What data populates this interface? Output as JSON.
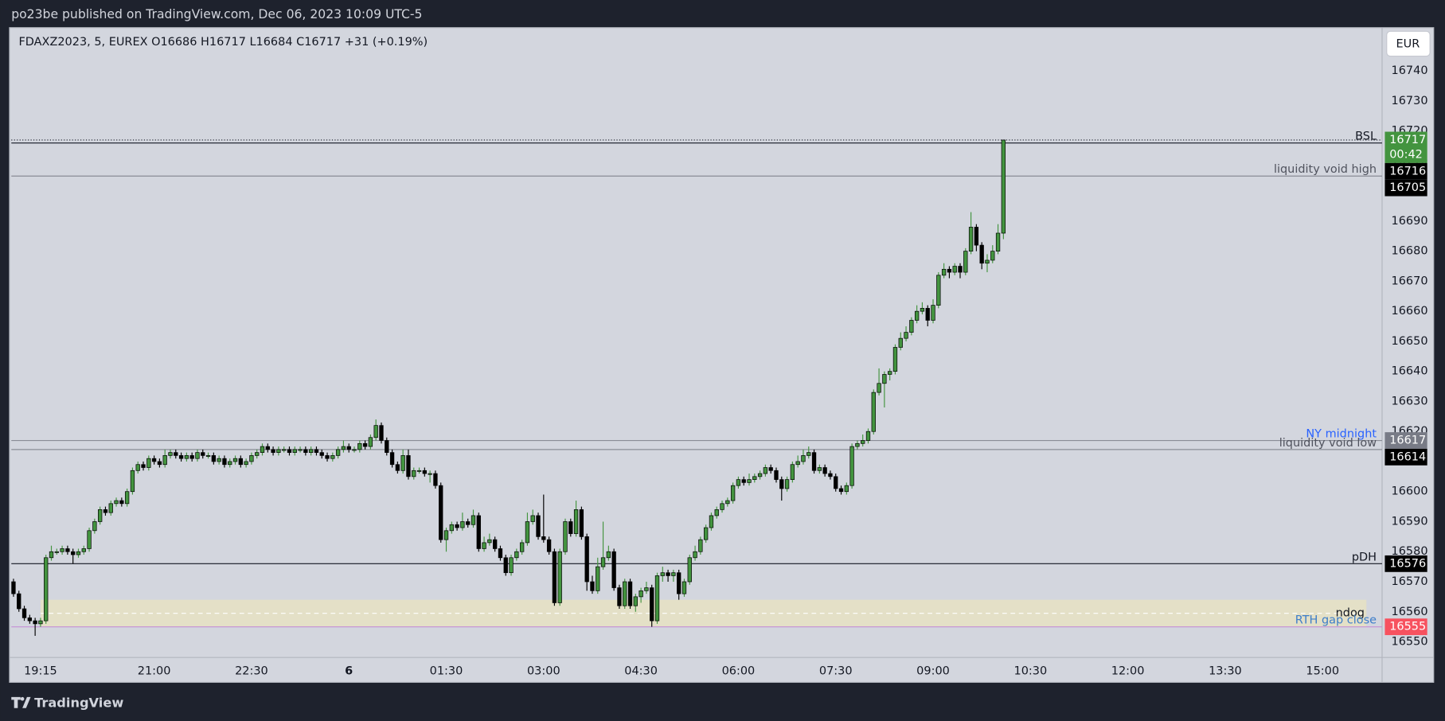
{
  "header": {
    "publisher": "po23be published on TradingView.com, Dec 06, 2023 10:09 UTC-5",
    "brand": "TradingView"
  },
  "chart_data": {
    "type": "candlestick",
    "legend": "FDAXZ2023, 5, EUREX  O16686  H16717  L16684  C16717  +31 (+0.19%)",
    "currency": "EUR",
    "countdown": "00:42",
    "up_color": "#43943f",
    "down_color": "#000000",
    "grid": false,
    "x": [
      "18:50",
      "18:55",
      "19:00",
      "19:05",
      "19:10",
      "19:15",
      "19:20",
      "19:25",
      "19:30",
      "19:35",
      "19:40",
      "19:45",
      "19:50",
      "19:55",
      "20:00",
      "20:05",
      "20:10",
      "20:15",
      "20:20",
      "20:25",
      "20:30",
      "20:35",
      "20:40",
      "20:45",
      "20:50",
      "20:55",
      "21:00",
      "21:05",
      "21:10",
      "21:15",
      "21:20",
      "21:25",
      "21:30",
      "21:35",
      "21:40",
      "21:45",
      "21:50",
      "21:55",
      "22:00",
      "22:05",
      "22:10",
      "22:15",
      "22:20",
      "22:25",
      "22:30",
      "22:35",
      "22:40",
      "22:45",
      "22:50",
      "22:55",
      "23:00",
      "23:05",
      "23:10",
      "23:15",
      "23:20",
      "23:25",
      "23:30",
      "23:35",
      "23:40",
      "23:45",
      "23:50",
      "23:55",
      "00:00",
      "00:05",
      "00:10",
      "00:15",
      "00:20",
      "00:25",
      "00:30",
      "00:35",
      "00:40",
      "00:45",
      "00:50",
      "00:55",
      "01:00",
      "01:05",
      "01:10",
      "01:15",
      "01:20",
      "01:25",
      "01:30",
      "01:35",
      "01:40",
      "01:45",
      "01:50",
      "01:55",
      "02:00",
      "02:05",
      "02:10",
      "02:15",
      "02:20",
      "02:25",
      "02:30",
      "02:35",
      "02:40",
      "02:45",
      "02:50",
      "02:55",
      "03:00",
      "03:05",
      "03:10",
      "03:15",
      "03:20",
      "03:25",
      "03:30",
      "03:35",
      "03:40",
      "03:45",
      "03:50",
      "03:55",
      "04:00",
      "04:05",
      "04:10",
      "04:15",
      "04:20",
      "04:25",
      "04:30",
      "04:35",
      "04:40",
      "04:45",
      "04:50",
      "04:55",
      "05:00",
      "05:05",
      "05:10",
      "05:15",
      "05:20",
      "05:25",
      "05:30",
      "05:35",
      "05:40",
      "05:45",
      "05:50",
      "05:55",
      "06:00",
      "06:05",
      "06:10",
      "06:15",
      "06:20",
      "06:25",
      "06:30",
      "06:35",
      "06:40",
      "06:45",
      "06:50",
      "06:55",
      "07:00",
      "07:05",
      "07:10",
      "07:15",
      "07:20",
      "07:25",
      "07:30",
      "07:35",
      "07:40",
      "07:45",
      "07:50",
      "07:55",
      "08:00",
      "08:05",
      "08:10",
      "08:15",
      "08:20",
      "08:25",
      "08:30",
      "08:35",
      "08:40",
      "08:45",
      "08:50",
      "08:55",
      "09:00",
      "09:05",
      "09:10",
      "09:15",
      "09:20",
      "09:25",
      "09:30",
      "09:35",
      "09:40",
      "09:45",
      "09:50",
      "09:55",
      "10:00",
      "10:05"
    ],
    "ohlc": [
      [
        16570,
        16571,
        16565,
        16566
      ],
      [
        16566,
        16567,
        16560,
        16561
      ],
      [
        16561,
        16562,
        16557,
        16558
      ],
      [
        16558,
        16559,
        16556,
        16557
      ],
      [
        16557,
        16558,
        16552,
        16556
      ],
      [
        16556,
        16558,
        16555,
        16557
      ],
      [
        16557,
        16579,
        16556,
        16578
      ],
      [
        16578,
        16582,
        16577,
        16580
      ],
      [
        16580,
        16581,
        16579,
        16580
      ],
      [
        16580,
        16582,
        16579,
        16581
      ],
      [
        16581,
        16582,
        16579,
        16580
      ],
      [
        16580,
        16581,
        16576,
        16579
      ],
      [
        16579,
        16581,
        16578,
        16580
      ],
      [
        16580,
        16582,
        16579,
        16581
      ],
      [
        16581,
        16588,
        16580,
        16587
      ],
      [
        16587,
        16591,
        16586,
        16590
      ],
      [
        16590,
        16595,
        16589,
        16594
      ],
      [
        16594,
        16595,
        16592,
        16593
      ],
      [
        16593,
        16597,
        16592,
        16596
      ],
      [
        16596,
        16598,
        16595,
        16597
      ],
      [
        16597,
        16598,
        16595,
        16596
      ],
      [
        16596,
        16601,
        16595,
        16600
      ],
      [
        16600,
        16608,
        16599,
        16607
      ],
      [
        16607,
        16610,
        16606,
        16609
      ],
      [
        16609,
        16610,
        16607,
        16608
      ],
      [
        16608,
        16612,
        16607,
        16611
      ],
      [
        16611,
        16612,
        16609,
        16610
      ],
      [
        16610,
        16611,
        16608,
        16609
      ],
      [
        16609,
        16614,
        16608,
        16612
      ],
      [
        16612,
        16614,
        16611,
        16613
      ],
      [
        16613,
        16614,
        16611,
        16612
      ],
      [
        16612,
        16613,
        16610,
        16611
      ],
      [
        16611,
        16613,
        16610,
        16612
      ],
      [
        16612,
        16613,
        16610,
        16611
      ],
      [
        16611,
        16614,
        16610,
        16613
      ],
      [
        16613,
        16614,
        16611,
        16612
      ],
      [
        16612,
        16613,
        16611,
        16612
      ],
      [
        16612,
        16613,
        16609,
        16610
      ],
      [
        16610,
        16612,
        16609,
        16611
      ],
      [
        16611,
        16612,
        16608,
        16609
      ],
      [
        16609,
        16611,
        16608,
        16610
      ],
      [
        16610,
        16612,
        16609,
        16611
      ],
      [
        16611,
        16612,
        16608,
        16609
      ],
      [
        16609,
        16611,
        16608,
        16610
      ],
      [
        16610,
        16613,
        16609,
        16612
      ],
      [
        16612,
        16614,
        16611,
        16613
      ],
      [
        16613,
        16616,
        16612,
        16615
      ],
      [
        16615,
        16616,
        16613,
        16614
      ],
      [
        16614,
        16615,
        16612,
        16613
      ],
      [
        16613,
        16615,
        16612,
        16614
      ],
      [
        16614,
        16615,
        16613,
        16614
      ],
      [
        16614,
        16615,
        16612,
        16613
      ],
      [
        16613,
        16615,
        16612,
        16614
      ],
      [
        16614,
        16615,
        16613,
        16614
      ],
      [
        16614,
        16615,
        16612,
        16613
      ],
      [
        16613,
        16615,
        16612,
        16614
      ],
      [
        16614,
        16615,
        16612,
        16613
      ],
      [
        16613,
        16614,
        16611,
        16612
      ],
      [
        16612,
        16613,
        16610,
        16611
      ],
      [
        16611,
        16613,
        16610,
        16612
      ],
      [
        16612,
        16615,
        16611,
        16614
      ],
      [
        16614,
        16617,
        16613,
        16615
      ],
      [
        16615,
        16616,
        16613,
        16614
      ],
      [
        16614,
        16615,
        16613,
        16614
      ],
      [
        16614,
        16617,
        16613,
        16616
      ],
      [
        16616,
        16617,
        16614,
        16615
      ],
      [
        16615,
        16619,
        16614,
        16618
      ],
      [
        16618,
        16624,
        16617,
        16622
      ],
      [
        16622,
        16623,
        16616,
        16617
      ],
      [
        16617,
        16618,
        16612,
        16613
      ],
      [
        16613,
        16614,
        16608,
        16609
      ],
      [
        16609,
        16610,
        16606,
        16607
      ],
      [
        16607,
        16614,
        16606,
        16612
      ],
      [
        16612,
        16614,
        16604,
        16605
      ],
      [
        16605,
        16608,
        16604,
        16607
      ],
      [
        16607,
        16608,
        16606,
        16607
      ],
      [
        16607,
        16608,
        16605,
        16606
      ],
      [
        16606,
        16607,
        16603,
        16606
      ],
      [
        16606,
        16607,
        16601,
        16602
      ],
      [
        16602,
        16603,
        16583,
        16584
      ],
      [
        16584,
        16588,
        16580,
        16587
      ],
      [
        16587,
        16590,
        16586,
        16589
      ],
      [
        16589,
        16590,
        16587,
        16588
      ],
      [
        16588,
        16593,
        16587,
        16590
      ],
      [
        16590,
        16591,
        16588,
        16589
      ],
      [
        16589,
        16594,
        16588,
        16592
      ],
      [
        16592,
        16593,
        16580,
        16581
      ],
      [
        16581,
        16585,
        16580,
        16583
      ],
      [
        16583,
        16586,
        16582,
        16584
      ],
      [
        16584,
        16585,
        16580,
        16581
      ],
      [
        16581,
        16582,
        16577,
        16578
      ],
      [
        16578,
        16579,
        16572,
        16573
      ],
      [
        16573,
        16579,
        16572,
        16578
      ],
      [
        16578,
        16581,
        16577,
        16580
      ],
      [
        16580,
        16584,
        16579,
        16583
      ],
      [
        16583,
        16593,
        16582,
        16590
      ],
      [
        16590,
        16594,
        16589,
        16592
      ],
      [
        16592,
        16593,
        16584,
        16585
      ],
      [
        16585,
        16599,
        16583,
        16584
      ],
      [
        16584,
        16585,
        16579,
        16580
      ],
      [
        16580,
        16581,
        16562,
        16563
      ],
      [
        16563,
        16581,
        16562,
        16580
      ],
      [
        16580,
        16591,
        16579,
        16590
      ],
      [
        16590,
        16591,
        16585,
        16586
      ],
      [
        16586,
        16597,
        16585,
        16594
      ],
      [
        16594,
        16595,
        16584,
        16585
      ],
      [
        16585,
        16586,
        16567,
        16570
      ],
      [
        16570,
        16572,
        16566,
        16567
      ],
      [
        16567,
        16578,
        16566,
        16575
      ],
      [
        16575,
        16590,
        16574,
        16578
      ],
      [
        16578,
        16582,
        16577,
        16580
      ],
      [
        16580,
        16581,
        16567,
        16568
      ],
      [
        16568,
        16569,
        16561,
        16562
      ],
      [
        16562,
        16571,
        16561,
        16570
      ],
      [
        16570,
        16571,
        16561,
        16562
      ],
      [
        16562,
        16566,
        16560,
        16565
      ],
      [
        16565,
        16568,
        16563,
        16567
      ],
      [
        16567,
        16570,
        16566,
        16568
      ],
      [
        16568,
        16569,
        16555,
        16557
      ],
      [
        16557,
        16573,
        16556,
        16572
      ],
      [
        16572,
        16575,
        16570,
        16573
      ],
      [
        16573,
        16574,
        16570,
        16572
      ],
      [
        16572,
        16574,
        16570,
        16573
      ],
      [
        16573,
        16574,
        16564,
        16566
      ],
      [
        16566,
        16571,
        16565,
        16570
      ],
      [
        16570,
        16579,
        16569,
        16578
      ],
      [
        16578,
        16582,
        16577,
        16580
      ],
      [
        16580,
        16585,
        16579,
        16584
      ],
      [
        16584,
        16589,
        16583,
        16588
      ],
      [
        16588,
        16593,
        16587,
        16592
      ],
      [
        16592,
        16595,
        16591,
        16594
      ],
      [
        16594,
        16597,
        16593,
        16596
      ],
      [
        16596,
        16598,
        16595,
        16597
      ],
      [
        16597,
        16603,
        16596,
        16602
      ],
      [
        16602,
        16605,
        16601,
        16604
      ],
      [
        16604,
        16605,
        16602,
        16603
      ],
      [
        16603,
        16606,
        16602,
        16604
      ],
      [
        16604,
        16606,
        16603,
        16605
      ],
      [
        16605,
        16607,
        16604,
        16606
      ],
      [
        16606,
        16609,
        16605,
        16608
      ],
      [
        16608,
        16609,
        16606,
        16607
      ],
      [
        16607,
        16608,
        16603,
        16604
      ],
      [
        16604,
        16605,
        16597,
        16601
      ],
      [
        16601,
        16605,
        16600,
        16604
      ],
      [
        16604,
        16610,
        16603,
        16609
      ],
      [
        16609,
        16612,
        16608,
        16610
      ],
      [
        16610,
        16614,
        16609,
        16612
      ],
      [
        16612,
        16615,
        16611,
        16613
      ],
      [
        16613,
        16614,
        16606,
        16607
      ],
      [
        16607,
        16609,
        16606,
        16608
      ],
      [
        16608,
        16609,
        16605,
        16606
      ],
      [
        16606,
        16607,
        16604,
        16605
      ],
      [
        16605,
        16606,
        16600,
        16601
      ],
      [
        16601,
        16602,
        16599,
        16600
      ],
      [
        16600,
        16603,
        16599,
        16602
      ],
      [
        16602,
        16616,
        16601,
        16615
      ],
      [
        16615,
        16617,
        16614,
        16616
      ],
      [
        16616,
        16619,
        16615,
        16617
      ],
      [
        16617,
        16621,
        16616,
        16620
      ],
      [
        16620,
        16634,
        16619,
        16633
      ],
      [
        16633,
        16641,
        16632,
        16636
      ],
      [
        16636,
        16640,
        16628,
        16639
      ],
      [
        16639,
        16641,
        16637,
        16640
      ],
      [
        16640,
        16649,
        16639,
        16648
      ],
      [
        16648,
        16653,
        16647,
        16651
      ],
      [
        16651,
        16655,
        16650,
        16653
      ],
      [
        16653,
        16658,
        16652,
        16657
      ],
      [
        16657,
        16662,
        16656,
        16660
      ],
      [
        16660,
        16663,
        16659,
        16661
      ],
      [
        16661,
        16662,
        16655,
        16657
      ],
      [
        16657,
        16664,
        16656,
        16662
      ],
      [
        16662,
        16673,
        16661,
        16672
      ],
      [
        16672,
        16676,
        16671,
        16674
      ],
      [
        16674,
        16675,
        16671,
        16673
      ],
      [
        16673,
        16676,
        16672,
        16675
      ],
      [
        16675,
        16676,
        16671,
        16673
      ],
      [
        16673,
        16681,
        16672,
        16680
      ],
      [
        16680,
        16693,
        16679,
        16688
      ],
      [
        16688,
        16689,
        16680,
        16682
      ],
      [
        16682,
        16683,
        16674,
        16676
      ],
      [
        16676,
        16679,
        16673,
        16677
      ],
      [
        16677,
        16682,
        16676,
        16680
      ],
      [
        16680,
        16689,
        16679,
        16686
      ],
      [
        16686,
        16717,
        16684,
        16717
      ]
    ],
    "xlim": [
      "18:48",
      "15:55"
    ],
    "xticks": [
      "19:15",
      "21:00",
      "22:30",
      {
        "value": "00:00",
        "label": "6"
      },
      "01:30",
      "03:00",
      "04:30",
      "06:00",
      "07:30",
      "09:00",
      "10:30",
      "12:00",
      "13:30",
      "15:00"
    ],
    "ylim": [
      16544.8,
      16754.4
    ],
    "yticks": [
      16550,
      16560,
      16570,
      16580,
      16590,
      16600,
      16610,
      16620,
      16630,
      16640,
      16650,
      16660,
      16670,
      16680,
      16690,
      16700,
      16710,
      16720,
      16730,
      16740
    ],
    "levels": [
      {
        "label": "BSL",
        "value": 16716,
        "color": "#131722",
        "text_color": "#131722",
        "axis_color": "#000000"
      },
      {
        "label": "liquidity void high",
        "value": 16705,
        "color": "#8a8d96",
        "text_color": "#50535e",
        "axis_color": "#000000"
      },
      {
        "label": "NY midnight",
        "value": 16617,
        "color": "#8a8d96",
        "text_color": "#2962ff",
        "axis_color": "#787b86"
      },
      {
        "label": "liquidity void low",
        "value": 16614,
        "color": "#8a8d96",
        "text_color": "#50535e",
        "axis_color": "#000000"
      },
      {
        "label": "pDH",
        "value": 16576,
        "color": "#131722",
        "text_color": "#131722",
        "axis_color": "#000000"
      },
      {
        "label": "RTH gap close",
        "value": 16555,
        "color": "#c58fd6",
        "text_color": "#3d7ec9",
        "axis_color": "#f7525f"
      }
    ],
    "zone": {
      "label": "ndog",
      "low": 16555,
      "high": 16564,
      "mid": 16559.5,
      "start": "19:15",
      "color": "#e6e2c3"
    }
  }
}
